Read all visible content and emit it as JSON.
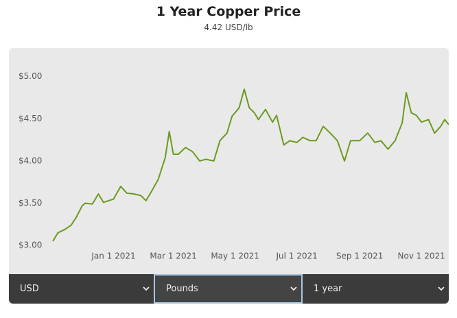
{
  "chart_data": {
    "type": "line",
    "title": "1 Year Copper Price",
    "subtitle": "4.42 USD/lb",
    "color": "#6b9a1e",
    "x": [
      "2020-11-02",
      "2020-11-07",
      "2020-11-14",
      "2020-11-20",
      "2020-11-25",
      "2020-12-01",
      "2020-12-04",
      "2020-12-11",
      "2020-12-17",
      "2020-12-22",
      "2021-01-01",
      "2021-01-08",
      "2021-01-14",
      "2021-01-21",
      "2021-01-28",
      "2021-02-02",
      "2021-02-07",
      "2021-02-14",
      "2021-02-21",
      "2021-02-25",
      "2021-03-01",
      "2021-03-06",
      "2021-03-13",
      "2021-03-20",
      "2021-03-27",
      "2021-04-02",
      "2021-04-10",
      "2021-04-16",
      "2021-04-23",
      "2021-04-28",
      "2021-05-05",
      "2021-05-10",
      "2021-05-15",
      "2021-05-20",
      "2021-05-24",
      "2021-05-31",
      "2021-06-07",
      "2021-06-11",
      "2021-06-18",
      "2021-06-24",
      "2021-07-01",
      "2021-07-07",
      "2021-07-14",
      "2021-07-20",
      "2021-07-27",
      "2021-08-03",
      "2021-08-10",
      "2021-08-17",
      "2021-08-23",
      "2021-09-01",
      "2021-09-09",
      "2021-09-16",
      "2021-09-22",
      "2021-09-29",
      "2021-10-06",
      "2021-10-13",
      "2021-10-17",
      "2021-10-22",
      "2021-10-27",
      "2021-11-01",
      "2021-11-08",
      "2021-11-14",
      "2021-11-20",
      "2021-11-24",
      "2021-11-28"
    ],
    "values": [
      3.05,
      3.15,
      3.19,
      3.24,
      3.33,
      3.47,
      3.5,
      3.49,
      3.61,
      3.51,
      3.55,
      3.7,
      3.62,
      3.61,
      3.59,
      3.53,
      3.63,
      3.78,
      4.04,
      4.35,
      4.08,
      4.08,
      4.16,
      4.11,
      4.0,
      4.02,
      4.0,
      4.24,
      4.33,
      4.53,
      4.63,
      4.85,
      4.63,
      4.57,
      4.49,
      4.61,
      4.46,
      4.54,
      4.19,
      4.24,
      4.22,
      4.28,
      4.24,
      4.24,
      4.41,
      4.33,
      4.24,
      4.0,
      4.24,
      4.24,
      4.33,
      4.22,
      4.24,
      4.14,
      4.24,
      4.45,
      4.81,
      4.57,
      4.54,
      4.46,
      4.49,
      4.33,
      4.41,
      4.49,
      4.43
    ],
    "xlim": [
      "2020-11-02",
      "2021-11-28"
    ],
    "xticks": [
      {
        "value": "2021-01-01",
        "label": "Jan 1 2021"
      },
      {
        "value": "2021-03-01",
        "label": "Mar 1 2021"
      },
      {
        "value": "2021-05-01",
        "label": "May 1 2021"
      },
      {
        "value": "2021-07-01",
        "label": "Jul 1 2021"
      },
      {
        "value": "2021-09-01",
        "label": "Sep 1 2021"
      },
      {
        "value": "2021-11-01",
        "label": "Nov 1 2021"
      }
    ],
    "ylim": [
      2.92,
      5.2
    ],
    "yticks": [
      {
        "value": 3,
        "label": "$3.00"
      },
      {
        "value": 3.5,
        "label": "$3.50"
      },
      {
        "value": 4,
        "label": "$4.00"
      },
      {
        "value": 4.5,
        "label": "$4.50"
      },
      {
        "value": 5,
        "label": "$5.00"
      }
    ]
  },
  "controls": {
    "currency": "USD",
    "unit": "Pounds",
    "period": "1 year"
  }
}
